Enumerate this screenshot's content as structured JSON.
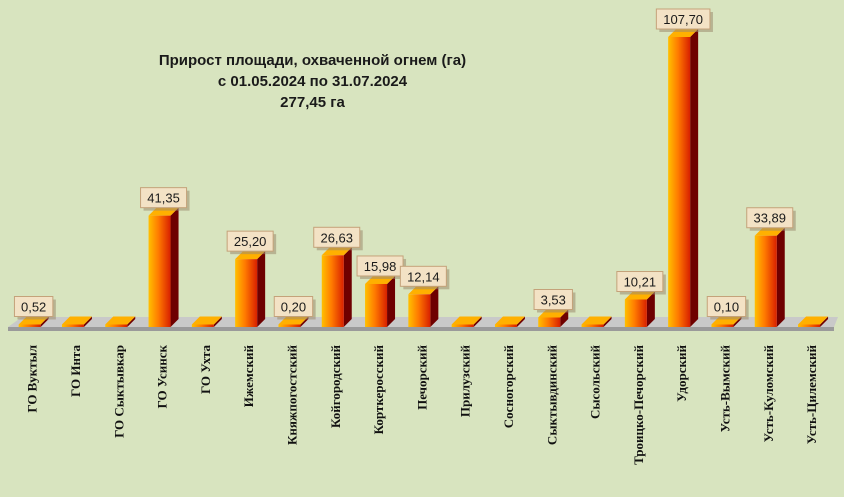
{
  "chart_data": {
    "type": "bar",
    "title_lines": [
      "Прирост площади, охваченной огнем (га)",
      "с 01.05.2024  по  31.07.2024",
      "277,45 га"
    ],
    "categories": [
      "ГО Вуктыл",
      "ГО Инта",
      "ГО Сыктывкар",
      "ГО Усинск",
      "ГО Ухта",
      "Ижемский",
      "Княжпогостский",
      "Койгородский",
      "Корткеросский",
      "Печорский",
      "Прилузский",
      "Сосногорский",
      "Сыктывдинский",
      "Сысольский",
      "Троицко-Печорский",
      "Удорский",
      "Усть-Вымский",
      "Усть-Куломский",
      "Усть-Цилемский"
    ],
    "values": [
      0.52,
      0,
      0,
      41.35,
      0,
      25.2,
      0.2,
      26.63,
      15.98,
      12.14,
      0,
      0,
      3.53,
      0,
      10.21,
      107.7,
      0.1,
      33.89,
      0
    ],
    "data_labels": [
      "0,52",
      "",
      "",
      "41,35",
      "",
      "25,20",
      "0,20",
      "26,63",
      "15,98",
      "12,14",
      "",
      "",
      "3,53",
      "",
      "10,21",
      "107,70",
      "0,10",
      "33,89",
      ""
    ],
    "ylim": [
      0,
      110
    ],
    "grid": false,
    "legend": "none",
    "colors": {
      "background": "#d8e4bf",
      "bar_light": "#ffb000",
      "bar_mid": "#ff5a00",
      "bar_dark": "#6e0000",
      "label_fill": "#f3e2c5",
      "label_border": "#c4a27a",
      "floor": "#b0b0b0"
    }
  }
}
